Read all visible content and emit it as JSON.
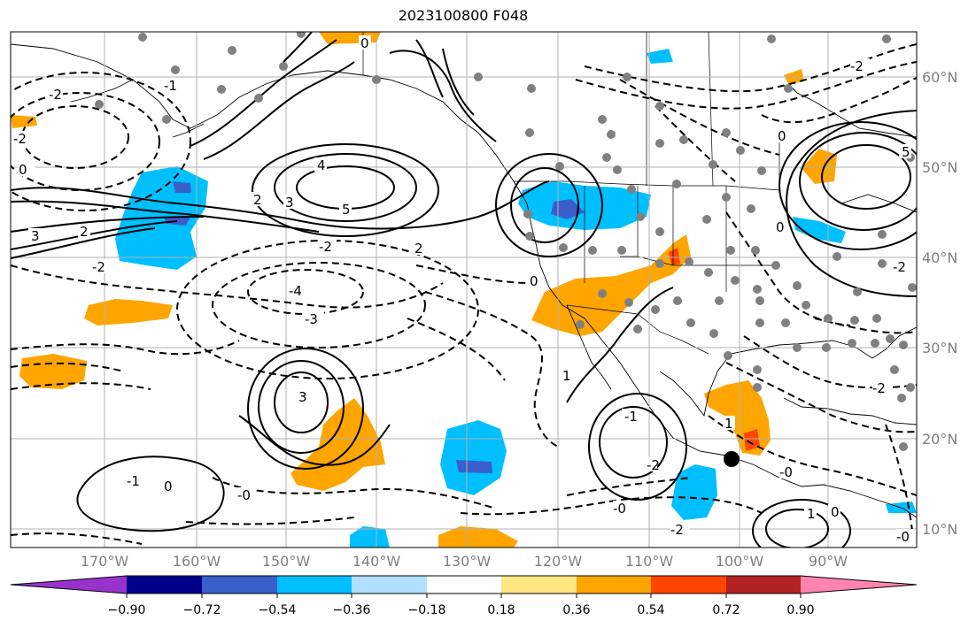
{
  "title": "2023100800 F048",
  "latitude_labels": [
    "60°N",
    "50°N",
    "40°N",
    "30°N",
    "20°N",
    "10°N"
  ],
  "longitude_labels": [
    "170°W",
    "160°W",
    "150°W",
    "140°W",
    "130°W",
    "120°W",
    "110°W",
    "100°W",
    "90°W"
  ],
  "colorbar": {
    "tick_labels": [
      "−0.90",
      "−0.72",
      "−0.54",
      "−0.36",
      "−0.18",
      "0.18",
      "0.36",
      "0.54",
      "0.72",
      "0.90"
    ],
    "colors": [
      "#9932cc",
      "#00008b",
      "#3a5fcd",
      "#00bfff",
      "#b0e0ff",
      "#ffffff",
      "#ffe680",
      "#ffa500",
      "#ff4500",
      "#b22222",
      "#ff85b0"
    ]
  },
  "contour_labels": {
    "positive": [
      "1",
      "2",
      "3",
      "4",
      "5",
      "0",
      "0",
      "0",
      "2",
      "1",
      "2",
      "3",
      "1",
      "5",
      "0",
      "1"
    ],
    "negative": [
      "-2",
      "-2",
      "-1",
      "-2",
      "-4",
      "-3",
      "-1",
      "-0",
      "-1",
      "-2",
      "-2",
      "-1",
      "-2",
      "-0",
      "-0",
      "-2",
      "-1",
      "-2",
      "-0"
    ]
  },
  "station_markers": "gray-dots",
  "storm_marker": "black-dot"
}
